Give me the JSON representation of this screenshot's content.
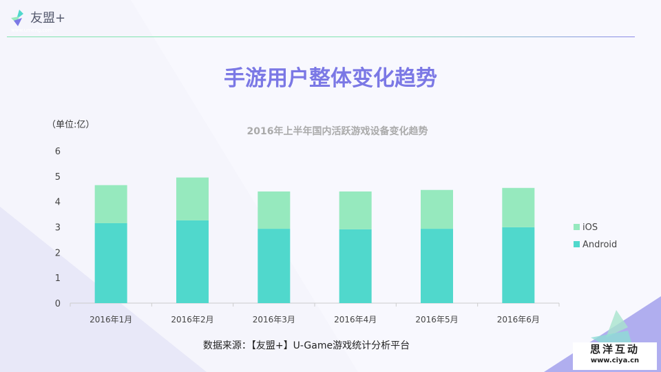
{
  "logo": {
    "name": "友盟+",
    "url": "www.umeng.com"
  },
  "title": "手游用户整体变化趋势",
  "source": "数据来源：【友盟+】U-Game游戏统计分析平台",
  "watermark": {
    "name": "思洋互动",
    "url": "www.ciya.cn"
  },
  "colors": {
    "android": "#50d8cc",
    "ios": "#96e9be",
    "title": "#7b78e5"
  },
  "chart_data": {
    "type": "bar",
    "stacked": true,
    "title": "2016年上半年国内活跃游戏设备变化趋势",
    "ylabel": "（单位:亿）",
    "xlabel": "",
    "ylim": [
      0,
      6
    ],
    "yticks": [
      "0",
      "1",
      "2",
      "3",
      "4",
      "5",
      "6"
    ],
    "categories": [
      "2016年1月",
      "2016年2月",
      "2016年3月",
      "2016年4月",
      "2016年5月",
      "2016年6月"
    ],
    "series": [
      {
        "name": "Android",
        "values": [
          3.15,
          3.26,
          2.93,
          2.91,
          2.93,
          2.99
        ]
      },
      {
        "name": "iOS",
        "values": [
          1.5,
          1.69,
          1.47,
          1.49,
          1.53,
          1.55
        ]
      }
    ],
    "legend_position": "right"
  }
}
